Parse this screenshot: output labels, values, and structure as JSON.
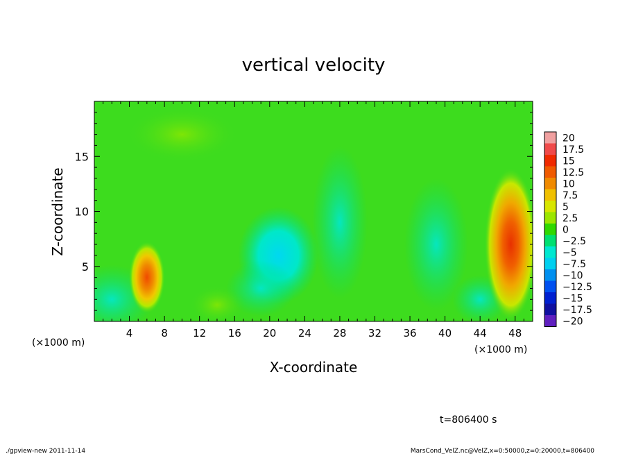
{
  "chart_data": {
    "type": "heatmap",
    "title": "vertical velocity",
    "xlabel": "X-coordinate",
    "ylabel": "Z-coordinate",
    "x_unit_left": "(×1000 m)",
    "x_unit_right": "(×1000 m)",
    "xlim": [
      0,
      50
    ],
    "ylim": [
      0,
      20
    ],
    "x_ticks": [
      4,
      8,
      12,
      16,
      20,
      24,
      28,
      32,
      36,
      40,
      44,
      48
    ],
    "y_ticks": [
      5,
      10,
      15
    ],
    "colorbar": {
      "levels": [
        20,
        17.5,
        15,
        12.5,
        10,
        7.5,
        5,
        2.5,
        0,
        -2.5,
        -5,
        -7.5,
        -10,
        -12.5,
        -15,
        -17.5,
        -20
      ],
      "labels": [
        "20",
        "17.5",
        "15",
        "12.5",
        "10",
        "7.5",
        "5",
        "2.5",
        "0",
        "−2.5",
        "−5",
        "−7.5",
        "−10",
        "−12.5",
        "−15",
        "−17.5",
        "−20"
      ],
      "colors": [
        "#f0a0a0",
        "#f04a4a",
        "#f02a00",
        "#f05a00",
        "#f08a00",
        "#f0c000",
        "#d8e600",
        "#9ce600",
        "#30d800",
        "#00e070",
        "#00e8d0",
        "#00d0f0",
        "#0090f0",
        "#0050f0",
        "#0020d0",
        "#1010a0",
        "#6020c0"
      ]
    },
    "features": [
      {
        "x": 6,
        "z": 4,
        "value": 13
      },
      {
        "x": 47.5,
        "z": 7,
        "value": 12
      },
      {
        "x": 20.5,
        "z": 6,
        "value": -6
      },
      {
        "x": 39,
        "z": 7,
        "value": -4
      }
    ],
    "time_label": "t=806400 s"
  },
  "footer": {
    "left": "./gpview-new  2011-11-14",
    "right": "MarsCond_VelZ.nc@VelZ,x=0:50000,z=0:20000,t=806400"
  },
  "colors": {
    "background_field": "#3ddc1e",
    "warm": "#f04a00",
    "cool": "#00e8e0"
  }
}
